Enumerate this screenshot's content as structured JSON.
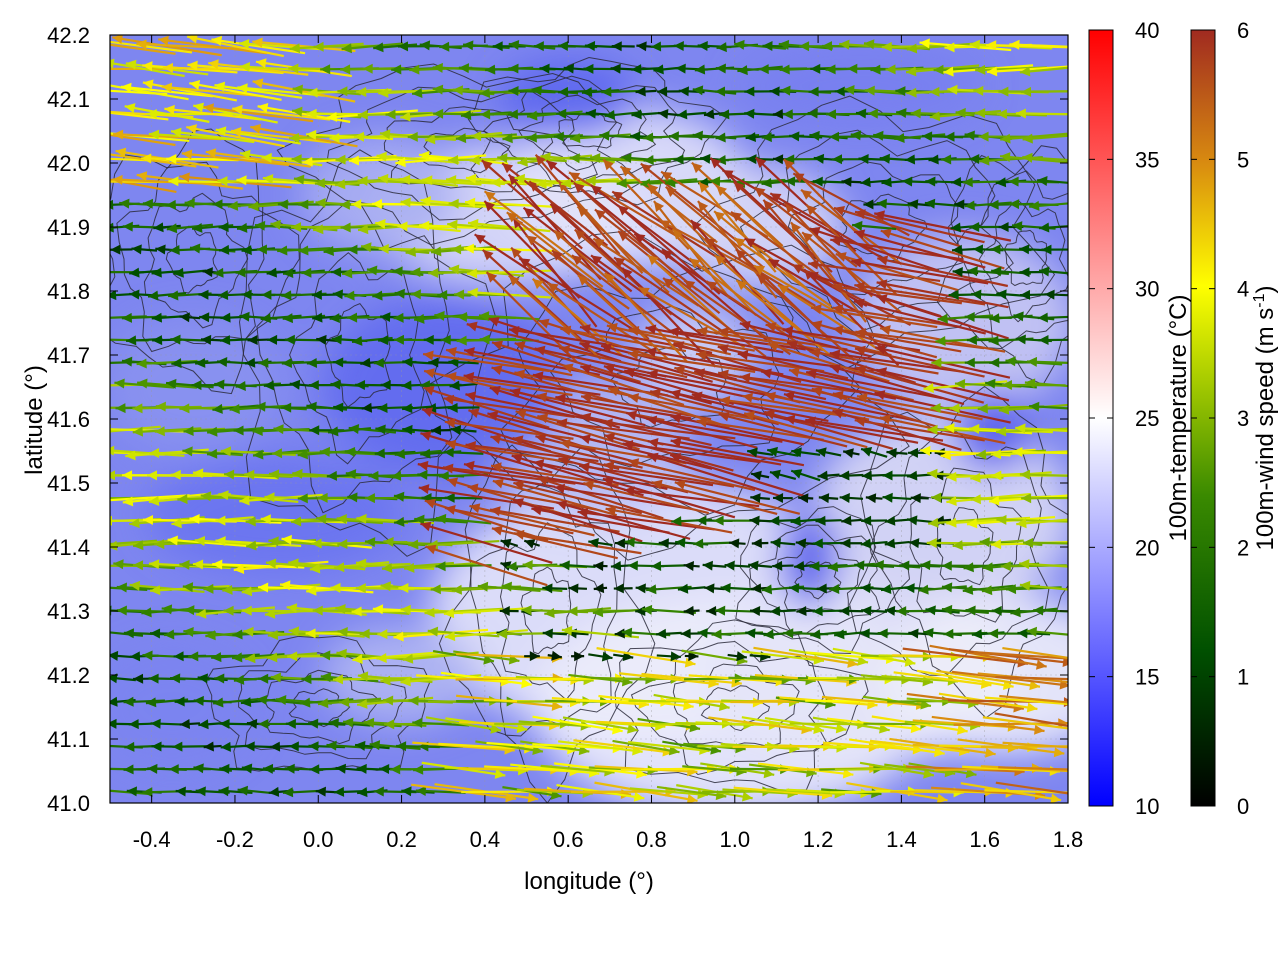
{
  "chart_data": {
    "type": "heatmap",
    "title": "",
    "xlabel": "longitude (°)",
    "ylabel": "latitude (°)",
    "xlim": [
      -0.5,
      1.8
    ],
    "ylim": [
      41.0,
      42.2
    ],
    "x_ticks": [
      "-0.4",
      "-0.2",
      "0.0",
      "0.2",
      "0.4",
      "0.6",
      "0.8",
      "1.0",
      "1.2",
      "1.4",
      "1.6",
      "1.8"
    ],
    "y_ticks": [
      "41.0",
      "41.1",
      "41.2",
      "41.3",
      "41.4",
      "41.5",
      "41.6",
      "41.7",
      "41.8",
      "41.9",
      "42.0",
      "42.1",
      "42.2"
    ],
    "grid": true,
    "layers": {
      "background": "temperature field (blue-white-red), mostly 14-24 °C",
      "contours": "terrain elevation isolines",
      "vectors": "wind vectors colored by speed"
    },
    "colorbars": [
      {
        "label": "100m-temperature (°C)",
        "min": 10,
        "max": 40,
        "ticks": [
          "10",
          "15",
          "20",
          "25",
          "30",
          "35",
          "40"
        ],
        "colors": [
          "#0000ff",
          "#ffffff",
          "#ff0000"
        ]
      },
      {
        "label": "100m-wind speed (m s",
        "label_sup": "-1",
        "label_close": ")",
        "min": 0,
        "max": 6,
        "ticks": [
          "0",
          "1",
          "2",
          "3",
          "4",
          "5",
          "6"
        ],
        "colors": [
          "#000000",
          "#005000",
          "#3a8a00",
          "#a8cc00",
          "#ffff00",
          "#d88a10",
          "#a02a20"
        ]
      }
    ]
  }
}
